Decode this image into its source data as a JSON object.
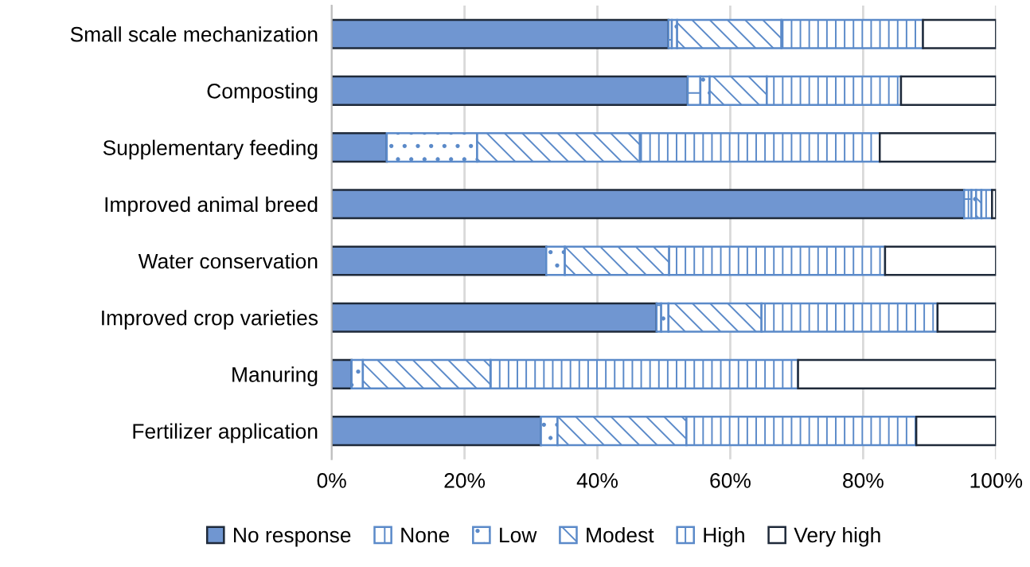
{
  "chart_data": {
    "type": "bar",
    "orientation": "horizontal",
    "stacked": true,
    "categories": [
      "Small scale mechanization",
      "Composting",
      "Supplementary feeding",
      "Improved animal breed",
      "Water conservation",
      "Improved crop varieties",
      "Manuring",
      "Fertilizer application"
    ],
    "series": [
      {
        "name": "No response",
        "color": "#7096d1",
        "values": [
          50.7,
          53.6,
          8.3,
          95.2,
          32.3,
          48.9,
          3.0,
          31.5
        ]
      },
      {
        "name": "None",
        "color": "#5b8ac9",
        "values": [
          0.5,
          1.9,
          0,
          1.1,
          0,
          0.7,
          0,
          0
        ]
      },
      {
        "name": "Low",
        "color": "#5b8ac9",
        "values": [
          0.8,
          1.4,
          13.6,
          0.7,
          2.8,
          1.1,
          1.7,
          2.5
        ]
      },
      {
        "name": "Modest",
        "color": "#5b8ac9",
        "values": [
          15.7,
          8.6,
          24.5,
          0.8,
          15.7,
          14.0,
          19.2,
          19.4
        ]
      },
      {
        "name": "High",
        "color": "#5b8ac9",
        "values": [
          21.3,
          20.2,
          36.1,
          1.6,
          32.5,
          26.5,
          46.3,
          34.6
        ]
      },
      {
        "name": "Very high",
        "color": "#ffffff",
        "values": [
          11.0,
          14.3,
          17.5,
          0.6,
          16.7,
          8.8,
          29.8,
          12.0
        ]
      }
    ],
    "xlim": [
      0,
      100
    ],
    "xticks": [
      {
        "value": 0,
        "label": "0%"
      },
      {
        "value": 20,
        "label": "20%"
      },
      {
        "value": 40,
        "label": "40%"
      },
      {
        "value": 60,
        "label": "60%"
      },
      {
        "value": 80,
        "label": "80%"
      },
      {
        "value": 100,
        "label": "100%"
      }
    ],
    "grid": "x",
    "legend": "bottom"
  }
}
